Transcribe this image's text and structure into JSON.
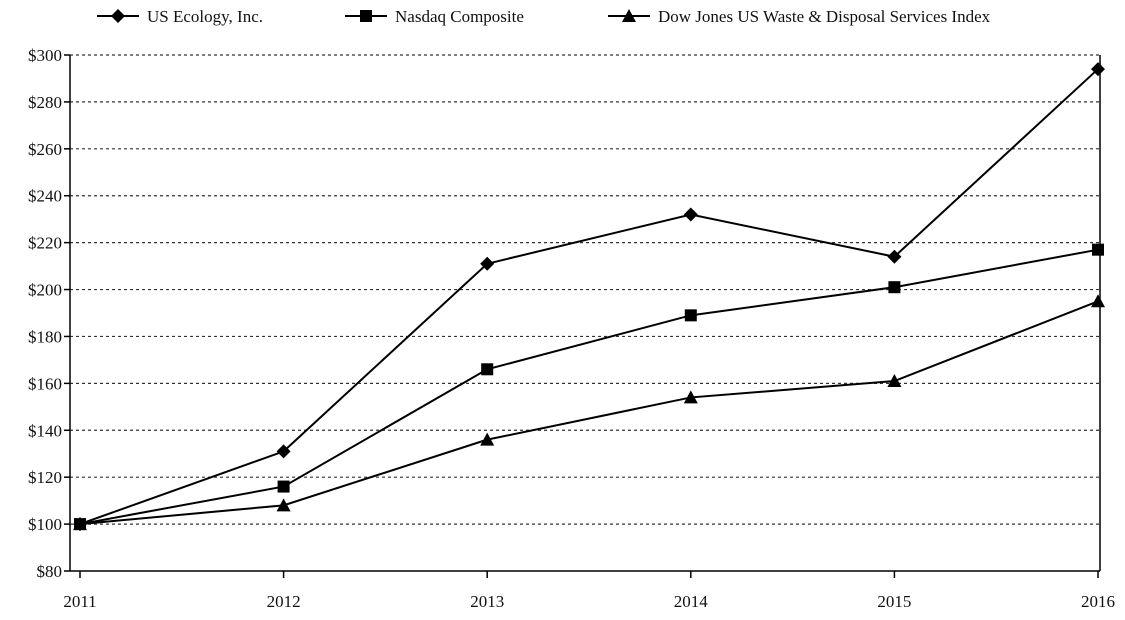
{
  "colors": {
    "line": "#000000",
    "grid": "#333333",
    "background": "#ffffff"
  },
  "chart_data": {
    "type": "line",
    "title": "",
    "xlabel": "",
    "ylabel": "",
    "x": [
      "2011",
      "2012",
      "2013",
      "2014",
      "2015",
      "2016"
    ],
    "ylim": [
      80,
      300
    ],
    "yticks": [
      80,
      100,
      120,
      140,
      160,
      180,
      200,
      220,
      240,
      260,
      280,
      300
    ],
    "ytick_labels": [
      "$80",
      "$100",
      "$120",
      "$140",
      "$160",
      "$180",
      "$200",
      "$220",
      "$240",
      "$260",
      "$280",
      "$300"
    ],
    "grid": "horizontal dashed",
    "legend_position": "top",
    "series": [
      {
        "name": "US Ecology, Inc.",
        "marker": "diamond",
        "values": [
          100,
          131,
          211,
          232,
          214,
          294
        ]
      },
      {
        "name": "Nasdaq Composite",
        "marker": "square",
        "values": [
          100,
          116,
          166,
          189,
          201,
          217
        ]
      },
      {
        "name": "Dow Jones US Waste & Disposal Services Index",
        "marker": "triangle",
        "values": [
          100,
          108,
          136,
          154,
          161,
          195
        ]
      }
    ]
  }
}
